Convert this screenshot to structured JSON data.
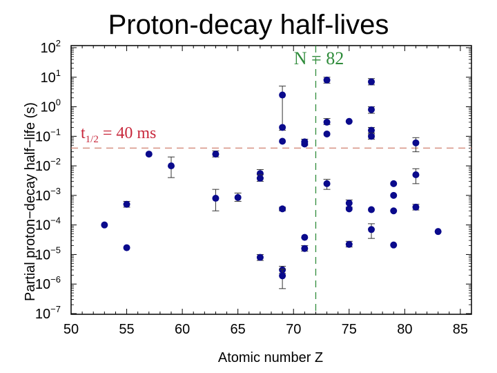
{
  "title": "Proton-decay half-lives",
  "chart_data": {
    "type": "scatter",
    "title": "Proton-decay half-lives",
    "xlabel": "Atomic number Z",
    "ylabel": "Partial proton−decay half−life (s)",
    "xlim": [
      50,
      86
    ],
    "ylim_log10": [
      -7,
      2
    ],
    "yscale": "log",
    "x_ticks": [
      "50",
      "55",
      "60",
      "65",
      "70",
      "75",
      "80",
      "85"
    ],
    "x_tick_values": [
      50,
      55,
      60,
      65,
      70,
      75,
      80,
      85
    ],
    "y_ticks": [
      {
        "base": "10",
        "exp": "2"
      },
      {
        "base": "10",
        "exp": "1"
      },
      {
        "base": "10",
        "exp": "0"
      },
      {
        "base": "10",
        "exp": "−1"
      },
      {
        "base": "10",
        "exp": "−2"
      },
      {
        "base": "10",
        "exp": "−3"
      },
      {
        "base": "10",
        "exp": "−4"
      },
      {
        "base": "10",
        "exp": "−5"
      },
      {
        "base": "10",
        "exp": "−6"
      },
      {
        "base": "10",
        "exp": "−7"
      }
    ],
    "y_tick_exponents": [
      2,
      1,
      0,
      -1,
      -2,
      -3,
      -4,
      -5,
      -6,
      -7
    ],
    "grid": false,
    "marker_color": "#0a0a8c",
    "points": [
      {
        "z": 53,
        "t": 0.0001
      },
      {
        "z": 55,
        "t": 0.0005,
        "t_low": 0.0004,
        "t_high": 0.00063
      },
      {
        "z": 55,
        "t": 1.7e-05
      },
      {
        "z": 57,
        "t": 0.025
      },
      {
        "z": 59,
        "t": 0.01,
        "t_low": 0.004,
        "t_high": 0.02
      },
      {
        "z": 63,
        "t": 0.025,
        "t_low": 0.02,
        "t_high": 0.032
      },
      {
        "z": 63,
        "t": 0.0008,
        "t_low": 0.0003,
        "t_high": 0.0016
      },
      {
        "z": 65,
        "t": 0.00085,
        "t_low": 0.00063,
        "t_high": 0.0012
      },
      {
        "z": 67,
        "t": 0.0055,
        "t_low": 0.004,
        "t_high": 0.0075
      },
      {
        "z": 67,
        "t": 0.0038,
        "t_low": 0.003,
        "t_high": 0.005
      },
      {
        "z": 67,
        "t": 8e-06,
        "t_low": 6.3e-06,
        "t_high": 1e-05
      },
      {
        "z": 69,
        "t": 2.5,
        "t_low": 0.16,
        "t_high": 5.0
      },
      {
        "z": 69,
        "t": 0.2
      },
      {
        "z": 69,
        "t": 0.068
      },
      {
        "z": 69,
        "t": 0.00035,
        "t_low": 0.0003,
        "t_high": 0.0004
      },
      {
        "z": 69,
        "t": 3e-06,
        "t_low": 2.3e-06,
        "t_high": 4e-06
      },
      {
        "z": 69,
        "t": 1.9e-06,
        "t_low": 7e-07,
        "t_high": 3.2e-06
      },
      {
        "z": 71,
        "t": 0.065,
        "t_low": 0.05,
        "t_high": 0.08
      },
      {
        "z": 71,
        "t": 0.055
      },
      {
        "z": 71,
        "t": 3.8e-05
      },
      {
        "z": 71,
        "t": 1.6e-05,
        "t_low": 1.3e-05,
        "t_high": 2e-05
      },
      {
        "z": 73,
        "t": 8.0,
        "t_low": 6.3,
        "t_high": 10.0
      },
      {
        "z": 73,
        "t": 0.3,
        "t_low": 0.25,
        "t_high": 0.4
      },
      {
        "z": 73,
        "t": 0.12
      },
      {
        "z": 73,
        "t": 0.0025,
        "t_low": 0.0016,
        "t_high": 0.0035
      },
      {
        "z": 75,
        "t": 0.32
      },
      {
        "z": 75,
        "t": 0.00055,
        "t_low": 0.0004,
        "t_high": 0.0007
      },
      {
        "z": 75,
        "t": 0.00035
      },
      {
        "z": 75,
        "t": 2.2e-05,
        "t_low": 1.8e-05,
        "t_high": 2.8e-05
      },
      {
        "z": 77,
        "t": 7.0,
        "t_low": 5.5,
        "t_high": 9.0
      },
      {
        "z": 77,
        "t": 0.8,
        "t_low": 0.6,
        "t_high": 1.0
      },
      {
        "z": 77,
        "t": 0.16,
        "t_low": 0.12,
        "t_high": 0.2
      },
      {
        "z": 77,
        "t": 0.1,
        "t_low": 0.08,
        "t_high": 0.13
      },
      {
        "z": 77,
        "t": 0.00033
      },
      {
        "z": 77,
        "t": 7e-05,
        "t_low": 3.5e-05,
        "t_high": 0.00011
      },
      {
        "z": 79,
        "t": 0.0025
      },
      {
        "z": 79,
        "t": 0.001
      },
      {
        "z": 79,
        "t": 0.0003
      },
      {
        "z": 79,
        "t": 2.1e-05
      },
      {
        "z": 81,
        "t": 0.06,
        "t_low": 0.03,
        "t_high": 0.09
      },
      {
        "z": 81,
        "t": 0.005,
        "t_low": 0.0025,
        "t_high": 0.008
      },
      {
        "z": 81,
        "t": 0.0004,
        "t_low": 0.00032,
        "t_high": 0.0005
      },
      {
        "z": 83,
        "t": 6e-05
      }
    ],
    "reference_lines": {
      "vertical": {
        "x": 72,
        "label": "N = 82",
        "color": "#2e8b3a",
        "style": "dashed"
      },
      "horizontal": {
        "y": 0.04,
        "label_main": "t",
        "label_sub": "1/2",
        "label_rest": " = 40 ms",
        "color": "#d08070",
        "style": "dashed"
      }
    }
  }
}
